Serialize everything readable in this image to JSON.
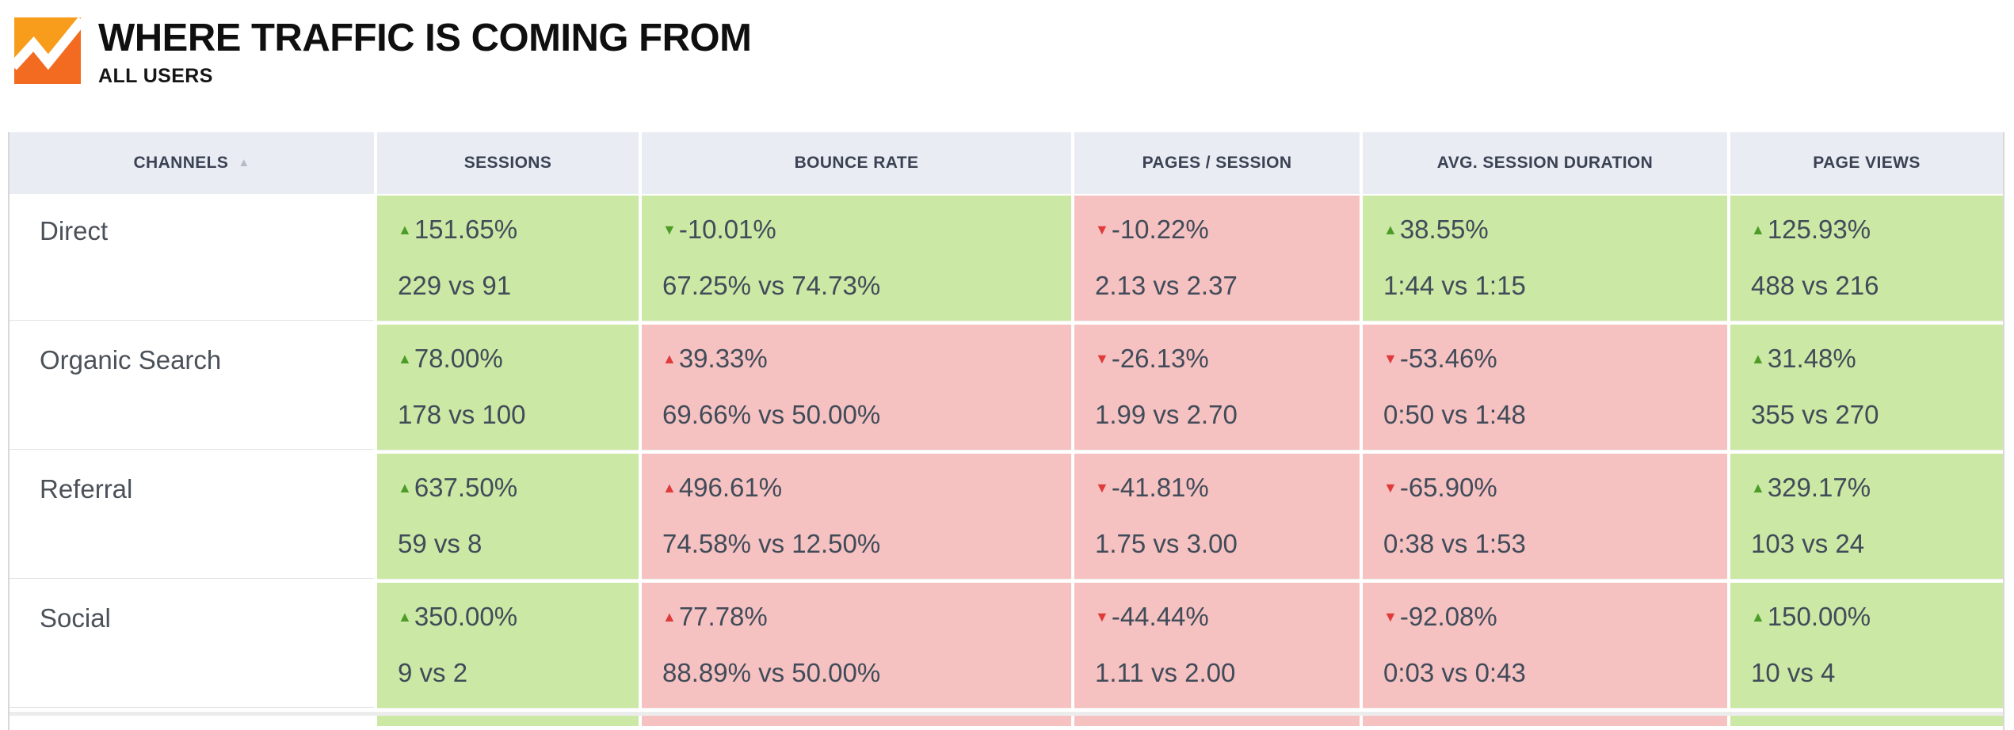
{
  "header": {
    "title": "WHERE TRAFFIC IS COMING FROM",
    "subtitle": "ALL USERS",
    "logo": {
      "name": "analytics-logo",
      "bg_color": "#F89C1C",
      "mountain_color": "#F26B21",
      "line_color": "#FFFFFF"
    }
  },
  "icons": {
    "triangle_up": "▲",
    "triangle_down": "▼",
    "sort_ascending": "▲"
  },
  "colors": {
    "good_cell_bg": "#cbe8a4",
    "bad_cell_bg": "#f5c2c1",
    "good_accent": "#4e9c28",
    "bad_accent": "#e03a3a",
    "header_bg": "#e9ecf2",
    "header_text": "#3b4254",
    "cell_text": "#414b59"
  },
  "table": {
    "columns": [
      {
        "key": "channel",
        "label": "CHANNELS",
        "sorted": "asc"
      },
      {
        "key": "sessions",
        "label": "SESSIONS"
      },
      {
        "key": "bounce",
        "label": "BOUNCE RATE"
      },
      {
        "key": "pages",
        "label": "PAGES / SESSION"
      },
      {
        "key": "duration",
        "label": "AVG. SESSION DURATION"
      },
      {
        "key": "views",
        "label": "PAGE VIEWS"
      }
    ],
    "rows": [
      {
        "channel": "Direct",
        "cells": [
          {
            "change": "151.65%",
            "dir": "up",
            "sentiment": "good",
            "compare": "229 vs 91"
          },
          {
            "change": "-10.01%",
            "dir": "down",
            "sentiment": "good",
            "compare": "67.25% vs 74.73%"
          },
          {
            "change": "-10.22%",
            "dir": "down",
            "sentiment": "bad",
            "compare": "2.13 vs 2.37"
          },
          {
            "change": "38.55%",
            "dir": "up",
            "sentiment": "good",
            "compare": "1:44 vs 1:15"
          },
          {
            "change": "125.93%",
            "dir": "up",
            "sentiment": "good",
            "compare": "488 vs 216"
          }
        ]
      },
      {
        "channel": "Organic Search",
        "cells": [
          {
            "change": "78.00%",
            "dir": "up",
            "sentiment": "good",
            "compare": "178 vs 100"
          },
          {
            "change": "39.33%",
            "dir": "up",
            "sentiment": "bad",
            "compare": "69.66% vs 50.00%"
          },
          {
            "change": "-26.13%",
            "dir": "down",
            "sentiment": "bad",
            "compare": "1.99 vs 2.70"
          },
          {
            "change": "-53.46%",
            "dir": "down",
            "sentiment": "bad",
            "compare": "0:50 vs 1:48"
          },
          {
            "change": "31.48%",
            "dir": "up",
            "sentiment": "good",
            "compare": "355 vs 270"
          }
        ]
      },
      {
        "channel": "Referral",
        "cells": [
          {
            "change": "637.50%",
            "dir": "up",
            "sentiment": "good",
            "compare": "59 vs 8"
          },
          {
            "change": "496.61%",
            "dir": "up",
            "sentiment": "bad",
            "compare": "74.58% vs 12.50%"
          },
          {
            "change": "-41.81%",
            "dir": "down",
            "sentiment": "bad",
            "compare": "1.75 vs 3.00"
          },
          {
            "change": "-65.90%",
            "dir": "down",
            "sentiment": "bad",
            "compare": "0:38 vs 1:53"
          },
          {
            "change": "329.17%",
            "dir": "up",
            "sentiment": "good",
            "compare": "103 vs 24"
          }
        ]
      },
      {
        "channel": "Social",
        "cells": [
          {
            "change": "350.00%",
            "dir": "up",
            "sentiment": "good",
            "compare": "9 vs 2"
          },
          {
            "change": "77.78%",
            "dir": "up",
            "sentiment": "bad",
            "compare": "88.89% vs 50.00%"
          },
          {
            "change": "-44.44%",
            "dir": "down",
            "sentiment": "bad",
            "compare": "1.11 vs 2.00"
          },
          {
            "change": "-92.08%",
            "dir": "down",
            "sentiment": "bad",
            "compare": "0:03 vs 0:43"
          },
          {
            "change": "150.00%",
            "dir": "up",
            "sentiment": "good",
            "compare": "10 vs 4"
          }
        ]
      }
    ],
    "partial_next_row_sentiments": [
      "good",
      "bad",
      "bad",
      "bad",
      "good"
    ]
  }
}
